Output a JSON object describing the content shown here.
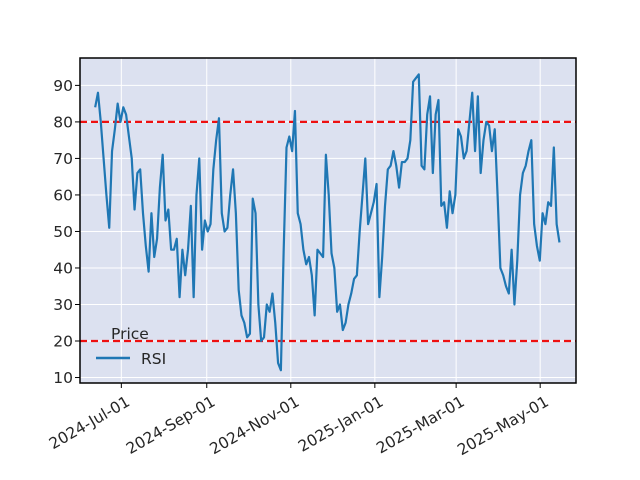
{
  "chart_data": {
    "type": "line",
    "title": "",
    "xlabel": "",
    "ylabel": "",
    "ylim": [
      8.5,
      97.5
    ],
    "yticks": [
      10,
      20,
      30,
      40,
      50,
      60,
      70,
      80,
      90
    ],
    "x_start": "2024-06-12",
    "x_end": "2025-05-15",
    "xlim": [
      "2024-06-01",
      "2025-05-27"
    ],
    "xticks": [
      {
        "date": "2024-07-01",
        "label": "2024-Jul-01"
      },
      {
        "date": "2024-09-01",
        "label": "2024-Sep-01"
      },
      {
        "date": "2024-11-01",
        "label": "2024-Nov-01"
      },
      {
        "date": "2025-01-01",
        "label": "2025-Jan-01"
      },
      {
        "date": "2025-03-01",
        "label": "2025-Mar-01"
      },
      {
        "date": "2025-05-01",
        "label": "2025-May-01"
      }
    ],
    "grid": true,
    "legend": {
      "title": "Price",
      "position": "lower-left"
    },
    "series": [
      {
        "name": "RSI",
        "color": "#1f77b4",
        "values": [
          84,
          88,
          80,
          70,
          60,
          51,
          72,
          78,
          85,
          80,
          84,
          82,
          76,
          70,
          56,
          66,
          67,
          55,
          46,
          39,
          55,
          43,
          48,
          62,
          71,
          53,
          56,
          45,
          45,
          48,
          32,
          45,
          38,
          45,
          57,
          32,
          60,
          70,
          45,
          53,
          50,
          52,
          67,
          75,
          81,
          55,
          50,
          51,
          60,
          67,
          55,
          34,
          27,
          25,
          21,
          22,
          59,
          55,
          30,
          20,
          21,
          30,
          28,
          33,
          25,
          14,
          12,
          45,
          73,
          76,
          72,
          83,
          55,
          52,
          45,
          41,
          43,
          38,
          27,
          45,
          44,
          43,
          71,
          60,
          44,
          40,
          28,
          30,
          23,
          25,
          30,
          33,
          37,
          38,
          50,
          60,
          70,
          52,
          55,
          58,
          63,
          32,
          43,
          57,
          67,
          68,
          72,
          68,
          62,
          69,
          69,
          70,
          75,
          91,
          92,
          93,
          68,
          67,
          82,
          87,
          66,
          82,
          86,
          57,
          58,
          51,
          61,
          55,
          60,
          78,
          76,
          70,
          72,
          80,
          88,
          72,
          87,
          66,
          75,
          80,
          79,
          72,
          78,
          60,
          40,
          38,
          35,
          33,
          45,
          30,
          42,
          60,
          66,
          68,
          72,
          75,
          52,
          46,
          42,
          55,
          52,
          58,
          57,
          73,
          52,
          47
        ]
      }
    ],
    "hlines": [
      {
        "value": 80,
        "color": "#ee1010",
        "style": "dashed"
      },
      {
        "value": 20,
        "color": "#ee1010",
        "style": "dashed"
      }
    ]
  }
}
